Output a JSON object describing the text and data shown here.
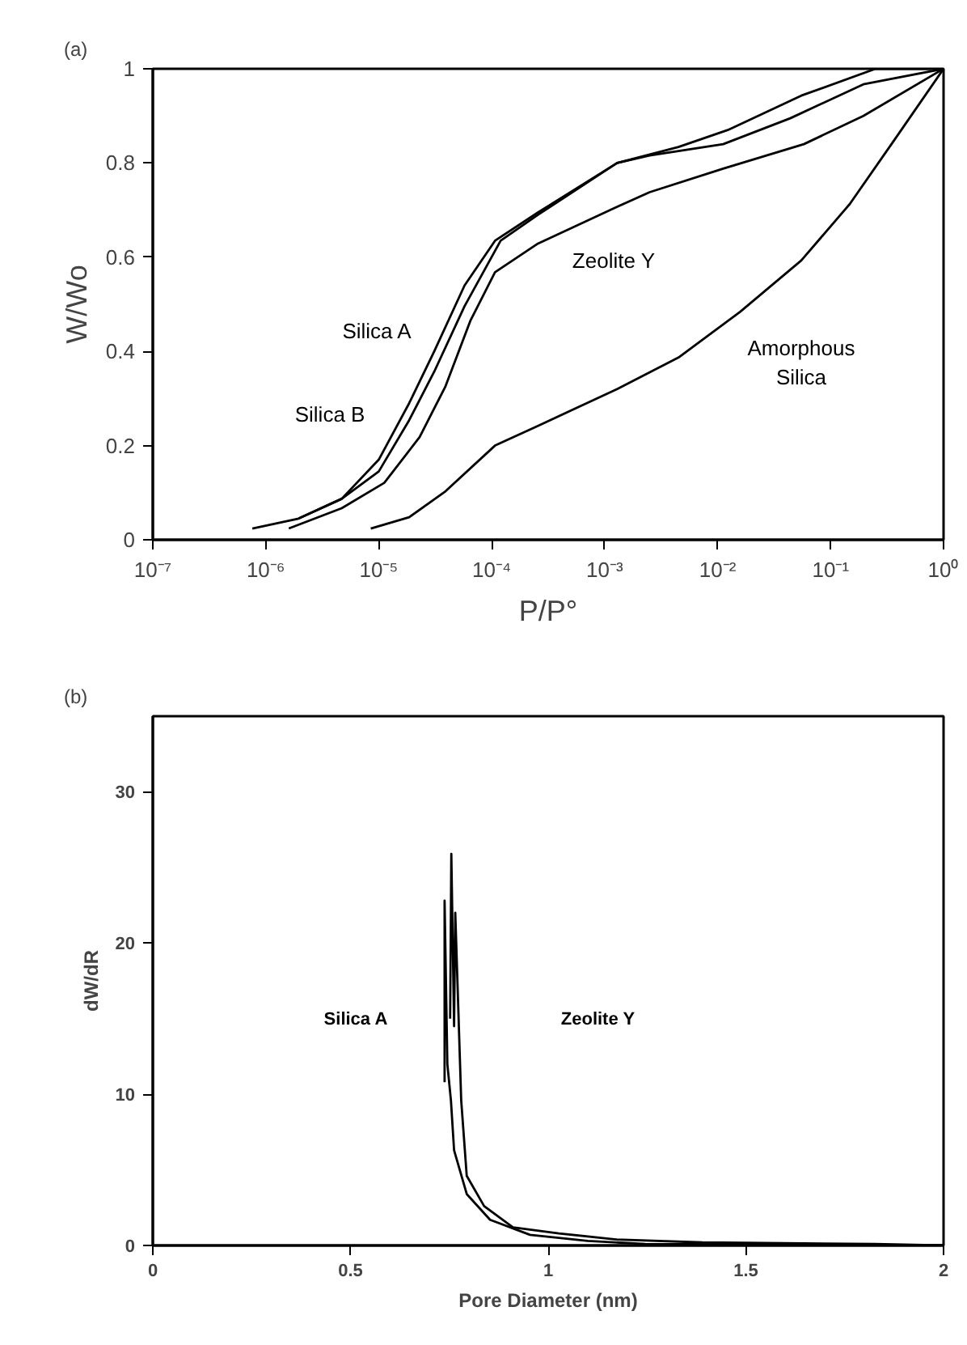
{
  "chart_data": [
    {
      "type": "line",
      "title": "(a)",
      "xlabel": "P/P°",
      "ylabel": "W/Wo",
      "log": "x",
      "xlim": [
        1e-07,
        1
      ],
      "ylim": [
        0,
        1
      ],
      "xticks": [
        {
          "value": 1e-07,
          "label": "10⁻⁷"
        },
        {
          "value": 1e-06,
          "label": "10⁻⁶"
        },
        {
          "value": 1e-05,
          "label": "10⁻⁵"
        },
        {
          "value": 0.0001,
          "label": "10⁻⁴"
        },
        {
          "value": 0.001,
          "label": "10⁻³"
        },
        {
          "value": 0.01,
          "label": "10⁻²"
        },
        {
          "value": 0.1,
          "label": "10⁻¹"
        },
        {
          "value": 1,
          "label": "10⁰"
        }
      ],
      "yticks": [
        0,
        0.2,
        0.4,
        0.6,
        0.8,
        1
      ],
      "series": [
        {
          "color": "#000000",
          "x": [
            7.6e-07,
            1.95e-06,
            4.7e-06,
            1e-05,
            1.86e-05,
            3.1e-05,
            5.75e-05,
            0.000107,
            0.000257,
            0.00129,
            0.0045,
            0.0123,
            0.055,
            0.25,
            0.78
          ],
          "values": [
            0.024,
            0.045,
            0.087,
            0.17,
            0.29,
            0.4,
            0.54,
            0.635,
            0.695,
            0.8,
            0.834,
            0.87,
            0.943,
            1.0,
            1.0
          ]
        },
        {
          "color": "#000000",
          "x": [
            1.95e-06,
            4.7e-06,
            1e-05,
            1.86e-05,
            3.1e-05,
            5.75e-05,
            0.00012,
            0.000257,
            0.00129,
            0.0025,
            0.0112,
            0.044,
            0.195,
            1
          ],
          "values": [
            0.045,
            0.087,
            0.145,
            0.254,
            0.357,
            0.496,
            0.635,
            0.69,
            0.8,
            0.816,
            0.84,
            0.895,
            0.967,
            1.0
          ]
        },
        {
          "color": "#000000",
          "x": [
            1.6e-06,
            4.7e-06,
            1.12e-05,
            2.3e-05,
            3.9e-05,
            6.5e-05,
            0.000107,
            0.000257,
            0.00129,
            0.0025,
            0.0112,
            0.058,
            0.195,
            1
          ],
          "values": [
            0.024,
            0.067,
            0.121,
            0.218,
            0.326,
            0.466,
            0.568,
            0.629,
            0.707,
            0.738,
            0.788,
            0.84,
            0.9,
            1.0
          ]
        },
        {
          "color": "#000000",
          "x": [
            8.5e-06,
            1.86e-05,
            3.9e-05,
            0.000107,
            0.000257,
            0.00129,
            0.0045,
            0.0158,
            0.055,
            0.148,
            0.36,
            1
          ],
          "values": [
            0.024,
            0.048,
            0.103,
            0.2,
            0.242,
            0.32,
            0.387,
            0.484,
            0.593,
            0.713,
            0.846,
            1.0
          ]
        }
      ],
      "annotations": [
        "Silica A",
        "Silica B",
        "Zeolite Y",
        "Amorphous\nSilica"
      ]
    },
    {
      "type": "line",
      "title": "(b)",
      "xlabel": "Pore Diameter (nm)",
      "ylabel": "dW/dR",
      "xlim": [
        0,
        2
      ],
      "ylim": [
        0,
        35
      ],
      "xticks": [
        0,
        0.5,
        1,
        1.5,
        2
      ],
      "yticks": [
        0,
        10,
        20,
        30
      ],
      "series": [
        {
          "color": "#000000",
          "x": [
            0.738,
            0.738,
            0.745,
            0.754,
            0.762,
            0.794,
            0.853,
            0.954,
            1.1,
            1.245,
            2
          ],
          "values": [
            10.8,
            22.8,
            12,
            9.6,
            6.3,
            3.4,
            1.7,
            0.7,
            0.3,
            0.1,
            0
          ]
        },
        {
          "color": "#000000",
          "x": [
            0.752,
            0.755,
            0.762,
            0.765,
            0.78,
            0.794,
            0.838,
            0.911,
            1.027,
            1.172,
            1.39,
            1.826,
            2
          ],
          "values": [
            15,
            25.9,
            14.5,
            22,
            9.6,
            4.6,
            2.6,
            1.2,
            0.8,
            0.4,
            0.2,
            0.1,
            0
          ]
        }
      ],
      "annotations": [
        "Silica A",
        "Zeolite Y"
      ]
    }
  ]
}
